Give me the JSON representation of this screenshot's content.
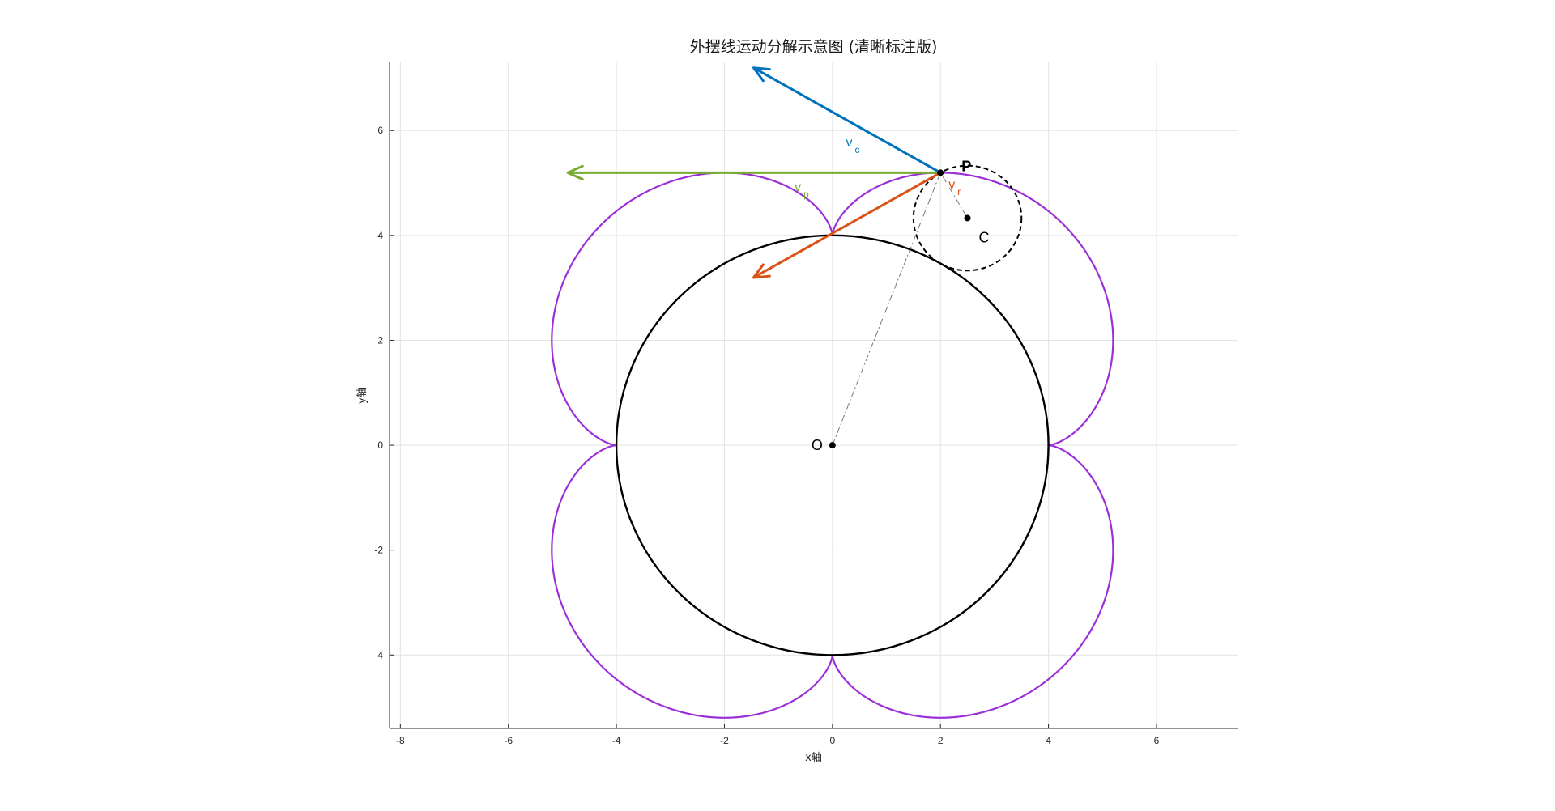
{
  "chart_data": {
    "type": "line",
    "title": "外摆线运动分解示意图 (清晰标注版)",
    "xlabel": "x轴",
    "ylabel": "y轴",
    "xlim": [
      -8.2,
      7.5
    ],
    "ylim": [
      -5.4,
      7.3
    ],
    "xticks": [
      -8,
      -6,
      -4,
      -2,
      0,
      2,
      4,
      6
    ],
    "yticks": [
      -4,
      -2,
      0,
      2,
      4,
      6
    ],
    "grid": true,
    "fixed_circle": {
      "center": [
        0,
        0
      ],
      "radius": 4,
      "color": "#000000"
    },
    "rolling_circle": {
      "center": [
        2.5,
        4.33
      ],
      "radius": 1,
      "color": "#000000",
      "style": "dashed"
    },
    "epicycloid": {
      "R": 4,
      "r": 1,
      "cusps": 4,
      "color": "#9b30d9"
    },
    "points": [
      {
        "name": "O",
        "x": 0,
        "y": 0
      },
      {
        "name": "C",
        "x": 2.5,
        "y": 4.33
      },
      {
        "name": "P",
        "x": 2.0,
        "y": 5.196
      }
    ],
    "vectors": [
      {
        "name": "v",
        "sub": "c",
        "from": [
          2.0,
          5.196
        ],
        "to": [
          -1.46,
          7.196
        ],
        "color": "#0072bd"
      },
      {
        "name": "v",
        "sub": "p",
        "from": [
          2.0,
          5.196
        ],
        "to": [
          -4.9,
          5.196
        ],
        "color": "#77ac30"
      },
      {
        "name": "v",
        "sub": "r",
        "from": [
          2.0,
          5.196
        ],
        "to": [
          -1.46,
          3.196
        ],
        "color": "#d95319"
      }
    ],
    "annotation_line": {
      "points": [
        [
          0,
          0
        ],
        [
          2.0,
          5.196
        ],
        [
          2.5,
          4.33
        ]
      ],
      "style": "dash-dot",
      "color": "#777777"
    }
  }
}
